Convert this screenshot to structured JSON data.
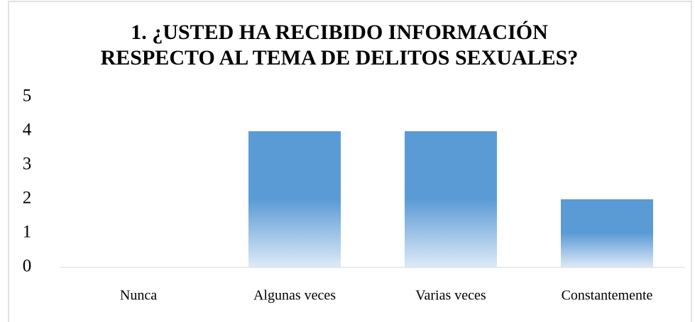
{
  "chart_data": {
    "type": "bar",
    "title": "1. ¿USTED HA RECIBIDO INFORMACIÓN RESPECTO AL TEMA DE DELITOS SEXUALES?",
    "categories": [
      "Nunca",
      "Algunas veces",
      "Varias veces",
      "Constantemente"
    ],
    "values": [
      0,
      4,
      4,
      2
    ],
    "color": "#5b9bd5",
    "ylim": [
      0,
      5
    ],
    "yticks": [
      0,
      1,
      2,
      3,
      4,
      5
    ],
    "grid": false
  }
}
